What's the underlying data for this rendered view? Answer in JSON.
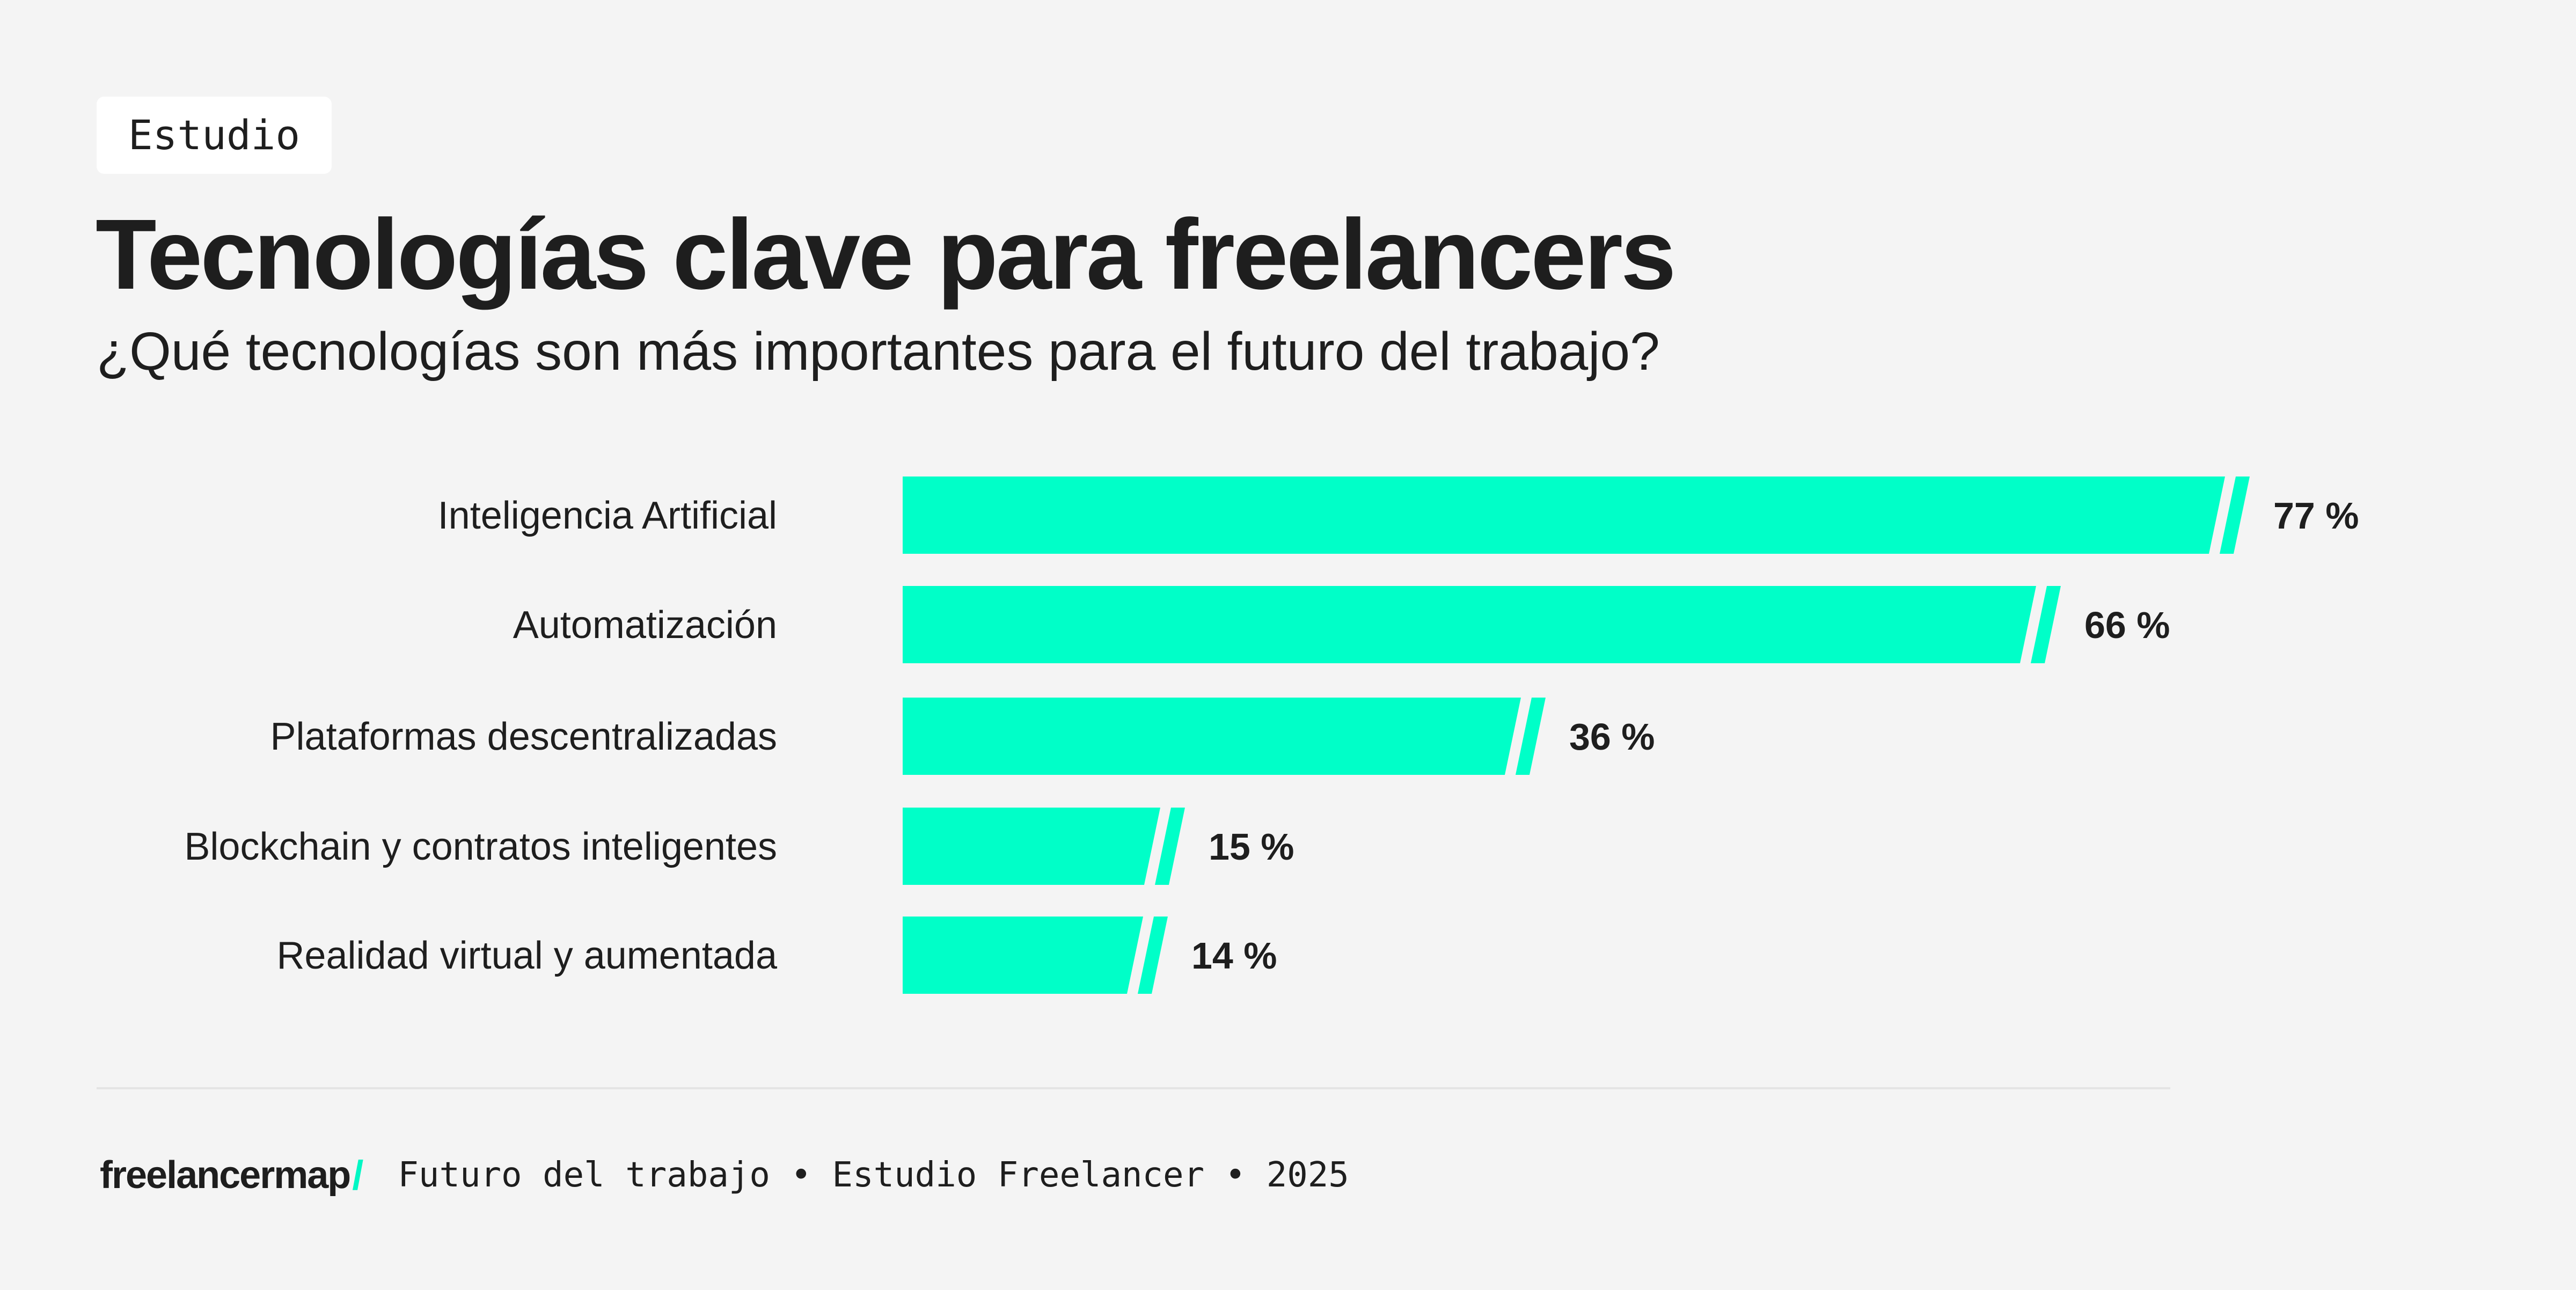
{
  "badge": "Estudio",
  "colors": {
    "accent": "#00ffc8",
    "background": "#f4f4f4",
    "text": "#1e1e1e"
  },
  "chart_data": {
    "type": "bar",
    "orientation": "horizontal",
    "title": "Tecnologías clave para freelancers",
    "subtitle": "¿Qué tecnologías son más importantes para el futuro del trabajo?",
    "categories": [
      "Inteligencia Artificial",
      "Automatización",
      "Plataformas descentralizadas",
      "Blockchain y contratos inteligentes",
      "Realidad virtual y aumentada"
    ],
    "values": [
      77,
      66,
      36,
      15,
      14
    ],
    "value_labels": [
      "77 %",
      "66 %",
      "36 %",
      "15 %",
      "14 %"
    ],
    "unit": "%",
    "grid": false,
    "legend": "none"
  },
  "footer": {
    "logo": "freelancermap",
    "logo_mark": "/",
    "text": "Futuro del trabajo • Estudio Freelancer • 2025"
  }
}
